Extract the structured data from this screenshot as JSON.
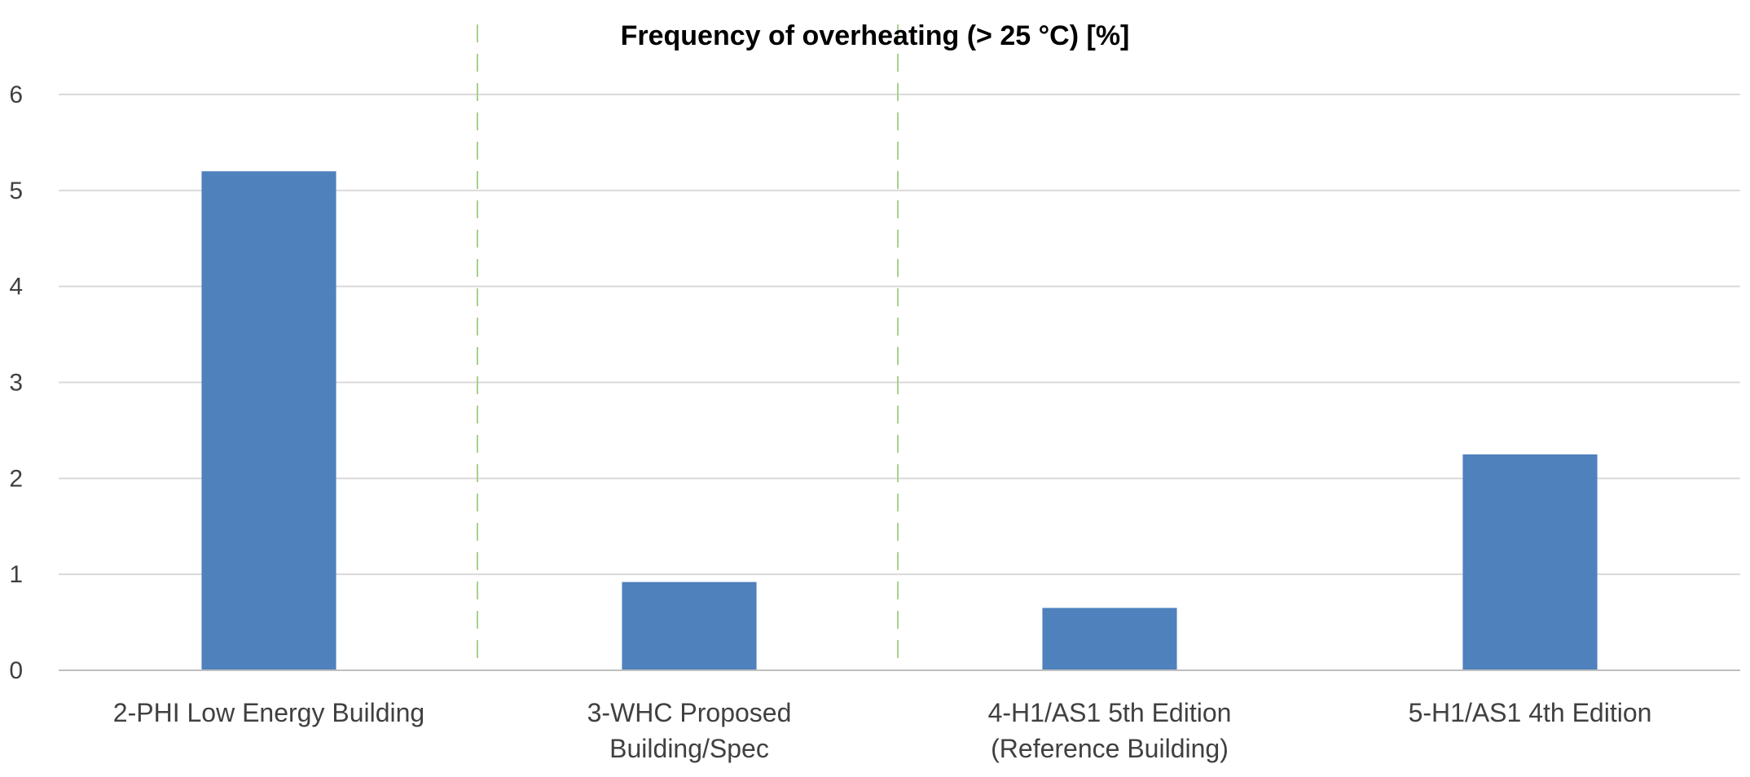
{
  "chart_data": {
    "type": "bar",
    "title": "Frequency of overheating (> 25 °C) [%]",
    "xlabel": "",
    "ylabel": "",
    "categories": [
      [
        "2-PHI Low Energy Building"
      ],
      [
        "3-WHC Proposed",
        "Building/Spec"
      ],
      [
        "4-H1/AS1 5th Edition",
        "(Reference Building)"
      ],
      [
        "5-H1/AS1 4th Edition"
      ]
    ],
    "values": [
      5.2,
      0.92,
      0.65,
      2.25
    ],
    "ylim": [
      0,
      6
    ],
    "yticks": [
      "0",
      "1",
      "2",
      "3",
      "4",
      "5",
      "6"
    ],
    "grid": true,
    "legend": "none",
    "colors": {
      "bar": "#4f81bd",
      "grid": "#d9d9d9",
      "separator": "#a9d18e",
      "axis": "#bfbfbf"
    }
  }
}
